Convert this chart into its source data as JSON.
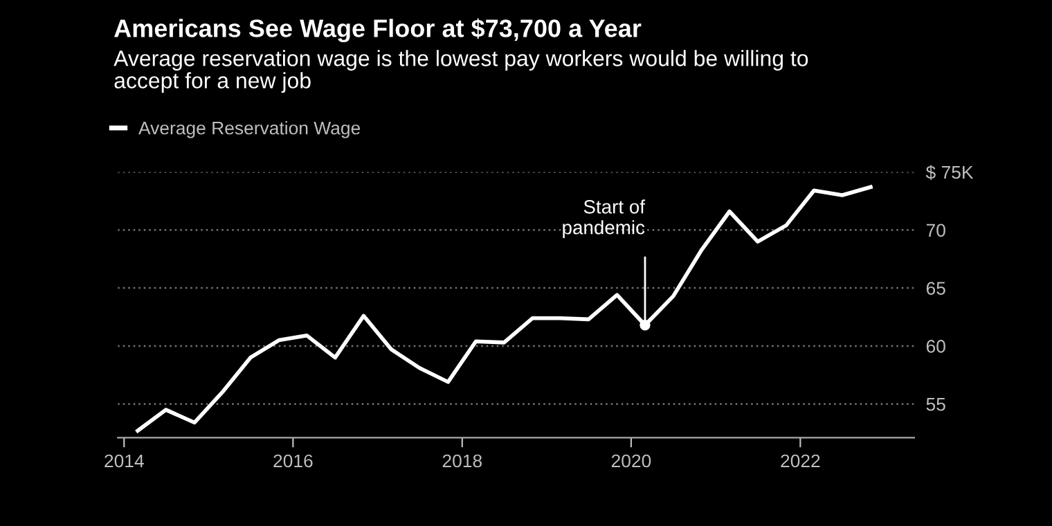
{
  "chart_data": {
    "type": "line",
    "title": "Americans See Wage Floor at $73,700 a Year",
    "subtitle": "Average reservation wage is the lowest pay workers would be willing to\naccept for a new job",
    "x": [
      "2014-03",
      "2014-07",
      "2014-11",
      "2015-03",
      "2015-07",
      "2015-11",
      "2016-03",
      "2016-07",
      "2016-11",
      "2017-03",
      "2017-07",
      "2017-11",
      "2018-03",
      "2018-07",
      "2018-11",
      "2019-03",
      "2019-07",
      "2019-11",
      "2020-03",
      "2020-07",
      "2020-11",
      "2021-03",
      "2021-07",
      "2021-11",
      "2022-03",
      "2022-07",
      "2022-11"
    ],
    "series": [
      {
        "name": "Average Reservation Wage",
        "color": "#ffffff",
        "values": [
          52.7,
          54.5,
          53.4,
          56.0,
          59.0,
          60.5,
          60.9,
          59.0,
          62.6,
          59.7,
          58.1,
          56.9,
          60.4,
          60.3,
          62.4,
          62.4,
          62.3,
          64.4,
          61.8,
          64.3,
          68.3,
          71.6,
          69.0,
          70.4,
          73.4,
          73.0,
          73.7
        ]
      }
    ],
    "annotations": [
      {
        "text": "Start of\npandemic",
        "x": "2020-03",
        "y": 61.8
      }
    ],
    "xlim": [
      "2013-12-05",
      "2023-05-08"
    ],
    "xticks": [
      {
        "value": "2014-01-01",
        "label": "2014"
      },
      {
        "value": "2016-01-01",
        "label": "2016"
      },
      {
        "value": "2018-01-01",
        "label": "2018"
      },
      {
        "value": "2020-01-01",
        "label": "2020"
      },
      {
        "value": "2022-01-01",
        "label": "2022"
      }
    ],
    "ylim": [
      52.1,
      75
    ],
    "yticks": [
      55,
      60,
      65,
      70,
      {
        "value": 75,
        "label": "$ 75K"
      }
    ],
    "grid": "y",
    "legend": "top left",
    "marker": "none",
    "line_style": "solid"
  }
}
